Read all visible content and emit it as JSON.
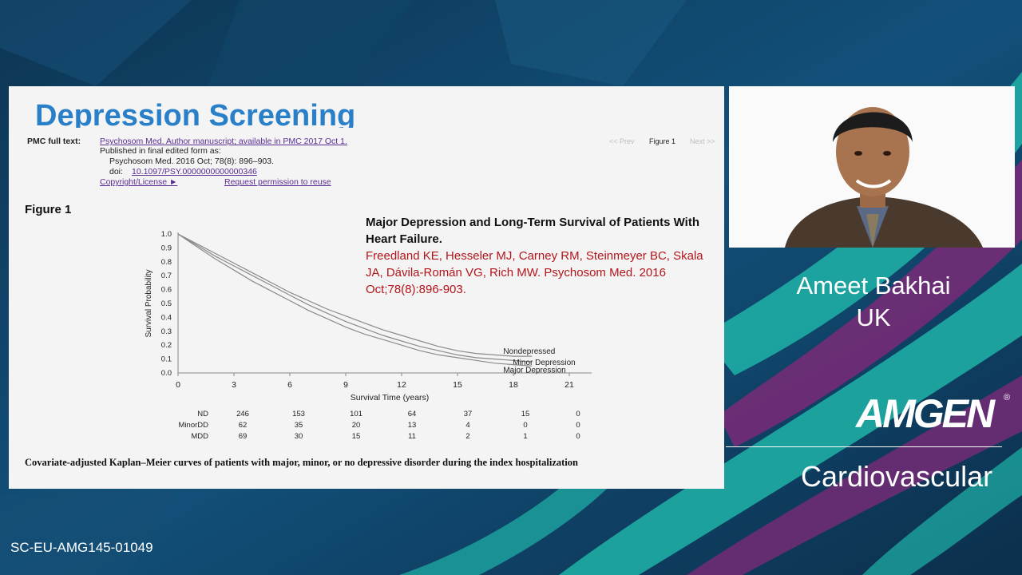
{
  "slide": {
    "title": "Depression Screening",
    "pmc": {
      "label": "PMC full text:",
      "line1": "Psychosom Med. Author manuscript; available in PMC 2017 Oct 1.",
      "line2": "Published in final edited form as:",
      "line3": "Psychosom Med. 2016 Oct; 78(8): 896–903.",
      "doi_label": "doi:",
      "doi": "10.1097/PSY.0000000000000346",
      "copyright": "Copyright/License ►",
      "permission": "Request permission to reuse"
    },
    "nav": {
      "prev": "<< Prev",
      "current": "Figure 1",
      "next": "Next >>"
    },
    "figure_label": "Figure 1",
    "citation": {
      "title": "Major Depression and Long-Term Survival of Patients With Heart Failure.",
      "authors": "Freedland KE, Hesseler MJ, Carney RM, Steinmeyer BC, Skala JA, Dávila-Román VG, Rich MW. Psychosom Med. 2016 Oct;78(8):896-903."
    },
    "caption": "Covariate-adjusted Kaplan–Meier curves of patients with major, minor, or no depressive disorder during the index hospitalization",
    "risk_table": {
      "rows": [
        {
          "label": "ND",
          "values": [
            "246",
            "153",
            "101",
            "64",
            "37",
            "15",
            "0"
          ]
        },
        {
          "label": "MinorDD",
          "values": [
            "62",
            "35",
            "20",
            "13",
            "4",
            "0",
            "0"
          ]
        },
        {
          "label": "MDD",
          "values": [
            "69",
            "30",
            "15",
            "11",
            "2",
            "1",
            "0"
          ]
        }
      ]
    }
  },
  "chart_data": {
    "type": "line",
    "xlabel": "Survival Time (years)",
    "ylabel": "Survival Probability",
    "xlim": [
      0,
      21
    ],
    "ylim": [
      0,
      1
    ],
    "xticks": [
      "0",
      "3",
      "6",
      "9",
      "12",
      "15",
      "18",
      "21"
    ],
    "yticks": [
      "0.0",
      "0.1",
      "0.2",
      "0.3",
      "0.4",
      "0.5",
      "0.6",
      "0.7",
      "0.8",
      "0.9",
      "1.0"
    ],
    "grid": false,
    "series": [
      {
        "name": "Nondepressed",
        "x": [
          0,
          1,
          2,
          3,
          4,
          5,
          6,
          7,
          8,
          9,
          10,
          11,
          12,
          13,
          14,
          15,
          16,
          17,
          18,
          19
        ],
        "y": [
          1.0,
          0.93,
          0.86,
          0.79,
          0.72,
          0.65,
          0.58,
          0.52,
          0.46,
          0.41,
          0.36,
          0.31,
          0.27,
          0.23,
          0.19,
          0.16,
          0.14,
          0.13,
          0.12,
          0.12
        ]
      },
      {
        "name": "Minor Depression",
        "x": [
          0,
          1,
          2,
          3,
          4,
          5,
          6,
          7,
          8,
          9,
          10,
          11,
          12,
          13,
          14,
          15,
          16,
          17,
          18,
          19
        ],
        "y": [
          1.0,
          0.92,
          0.84,
          0.77,
          0.7,
          0.63,
          0.56,
          0.49,
          0.43,
          0.37,
          0.32,
          0.27,
          0.23,
          0.19,
          0.16,
          0.13,
          0.11,
          0.1,
          0.09,
          0.08
        ]
      },
      {
        "name": "Major Depression",
        "x": [
          0,
          1,
          2,
          3,
          4,
          5,
          6,
          7,
          8,
          9,
          10,
          11,
          12,
          13,
          14,
          15,
          16,
          17,
          18,
          19
        ],
        "y": [
          1.0,
          0.91,
          0.82,
          0.74,
          0.66,
          0.59,
          0.52,
          0.45,
          0.39,
          0.33,
          0.28,
          0.24,
          0.2,
          0.16,
          0.13,
          0.11,
          0.09,
          0.07,
          0.06,
          0.05
        ]
      }
    ]
  },
  "speaker": {
    "name": "Ameet Bakhai",
    "country": "UK"
  },
  "brand": {
    "logo": "AMGEN",
    "registered": "®",
    "division": "Cardiovascular"
  },
  "footer": {
    "code": "SC-EU-AMG145-01049"
  },
  "colors": {
    "title_blue": "#2a7fc9",
    "citation_red": "#b3151b",
    "link_purple": "#5a2d91",
    "teal": "#1fb3a8",
    "magenta": "#7a2a78"
  }
}
